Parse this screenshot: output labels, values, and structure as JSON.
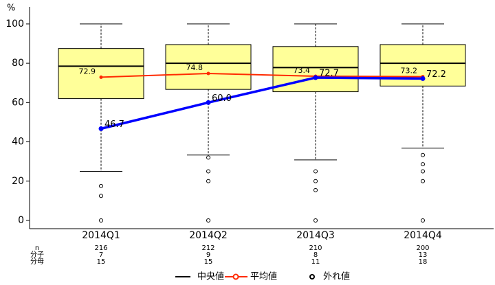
{
  "chart_data": {
    "type": "box",
    "y_label": "%",
    "categories": [
      "2014Q1",
      "2014Q2",
      "2014Q3",
      "2014Q4"
    ],
    "ylim": [
      -4.2,
      108.7
    ],
    "yticks": [
      0,
      20,
      40,
      60,
      80,
      100
    ],
    "box_color": "#ffff99",
    "boxes": [
      {
        "whislo": 25,
        "q1": 62,
        "med": 78.5,
        "q3": 87.5,
        "whishi": 100,
        "fliers": [
          17.5,
          12.5,
          0
        ]
      },
      {
        "whislo": 33.3,
        "q1": 66.7,
        "med": 80,
        "q3": 89.5,
        "whishi": 100,
        "fliers": [
          32,
          25,
          20,
          0
        ]
      },
      {
        "whislo": 30.8,
        "q1": 65.5,
        "med": 77.8,
        "q3": 88.5,
        "whishi": 100,
        "fliers": [
          25,
          20,
          15.4,
          0
        ]
      },
      {
        "whislo": 36.8,
        "q1": 68.4,
        "med": 80,
        "q3": 89.5,
        "whishi": 100,
        "fliers": [
          33.3,
          28.6,
          25,
          20,
          0
        ]
      }
    ],
    "mean": {
      "name": "平均値",
      "color": "#ff2a00",
      "values": [
        72.9,
        74.8,
        73.4,
        73.2
      ]
    },
    "rate": {
      "color": "#0000ff",
      "values": [
        46.7,
        60.0,
        72.7,
        72.2
      ],
      "value_labels": [
        "46.7",
        "60.0",
        "72.7",
        "72.2"
      ]
    },
    "median_name": "中央値",
    "outlier_name": "外れ値",
    "table": {
      "color": "#0000cc",
      "rows": [
        {
          "label": "n",
          "values": [
            216,
            212,
            210,
            200
          ]
        },
        {
          "label": "分子",
          "values": [
            7,
            9,
            8,
            13
          ]
        },
        {
          "label": "分母",
          "values": [
            15,
            15,
            11,
            18
          ]
        }
      ]
    }
  }
}
